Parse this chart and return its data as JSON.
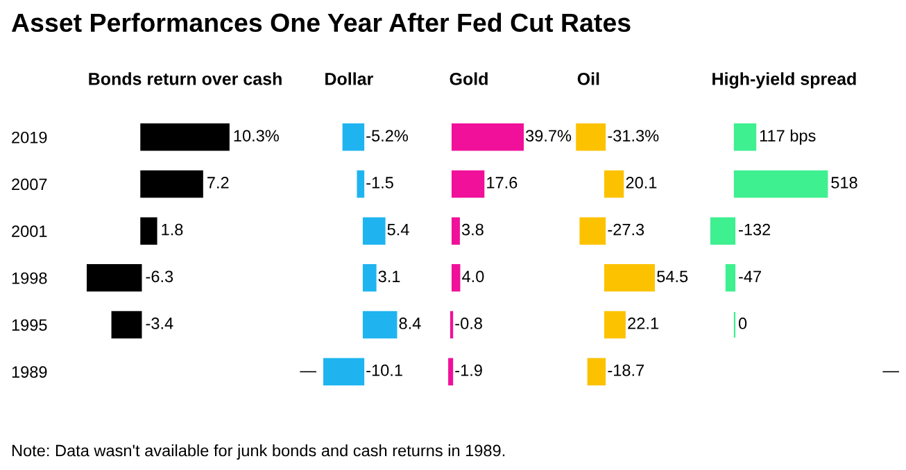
{
  "chart_data": [
    {
      "type": "other",
      "title": "Asset Performances One Year After Fed Cut Rates",
      "annotations": [
        "Note: Data wasn't available for junk bonds and cash returns in 1989."
      ]
    },
    {
      "type": "bar",
      "orientation": "horizontal",
      "title": "Bonds return over cash",
      "categories": [
        "2019",
        "2007",
        "2001",
        "1998",
        "1995",
        "1989"
      ],
      "values": [
        10.3,
        7.2,
        1.8,
        -6.3,
        -3.4,
        null
      ],
      "value_labels": [
        "10.3%",
        "7.2",
        "1.8",
        "-6.3",
        "-3.4",
        "—"
      ],
      "color": "#000000",
      "tick_labels": "y"
    },
    {
      "type": "bar",
      "orientation": "horizontal",
      "title": "Dollar",
      "categories": [
        "2019",
        "2007",
        "2001",
        "1998",
        "1995",
        "1989"
      ],
      "values": [
        -5.2,
        -1.5,
        5.4,
        3.1,
        8.4,
        -10.1
      ],
      "value_labels": [
        "-5.2%",
        "-1.5",
        "5.4",
        "3.1",
        "8.4",
        "-10.1"
      ],
      "color": "#1fb4f0",
      "tick_labels": false
    },
    {
      "type": "bar",
      "orientation": "horizontal",
      "title": "Gold",
      "categories": [
        "2019",
        "2007",
        "2001",
        "1998",
        "1995",
        "1989"
      ],
      "values": [
        39.7,
        17.6,
        3.8,
        4.0,
        -0.8,
        -1.9
      ],
      "value_labels": [
        "39.7%",
        "17.6",
        "3.8",
        "4.0",
        "-0.8",
        "-1.9"
      ],
      "color": "#f0109a",
      "tick_labels": false
    },
    {
      "type": "bar",
      "orientation": "horizontal",
      "title": "Oil",
      "categories": [
        "2019",
        "2007",
        "2001",
        "1998",
        "1995",
        "1989"
      ],
      "values": [
        -31.3,
        20.1,
        -27.3,
        54.5,
        22.1,
        -18.7
      ],
      "value_labels": [
        "-31.3%",
        "20.1",
        "-27.3",
        "54.5",
        "22.1",
        "-18.7"
      ],
      "color": "#fcc200",
      "tick_labels": false
    },
    {
      "type": "bar",
      "orientation": "horizontal",
      "title": "High-yield spread",
      "categories": [
        "2019",
        "2007",
        "2001",
        "1998",
        "1995",
        "1989"
      ],
      "values": [
        117,
        518,
        -132,
        -47,
        0,
        null
      ],
      "value_labels": [
        "117 bps",
        "518",
        "-132",
        "-47",
        "0",
        "—"
      ],
      "color": "#3ef08f",
      "tick_labels": false
    }
  ]
}
